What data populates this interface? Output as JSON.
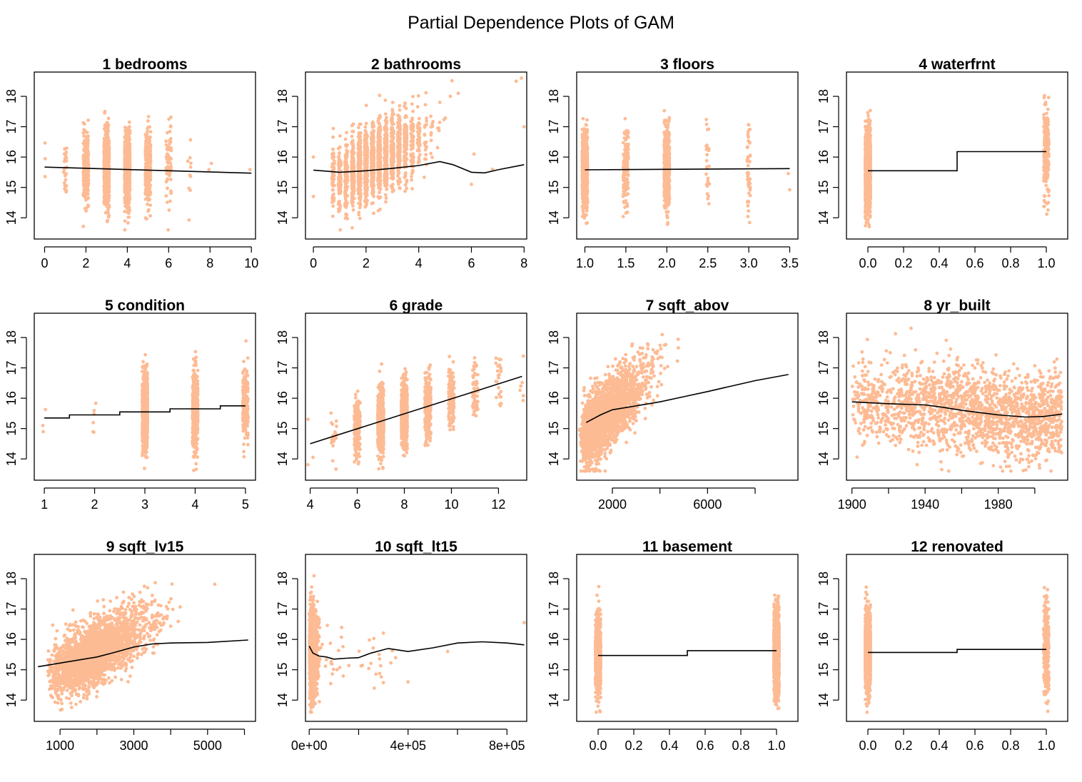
{
  "title": "Partial Dependence Plots of GAM",
  "colors": {
    "points": "#FDBB94",
    "line": "#000000",
    "axis": "#000000",
    "background": "#FFFFFF"
  },
  "chart_data": [
    {
      "type": "scatter",
      "title": "1  bedrooms",
      "xlim": [
        -0.5,
        10.2
      ],
      "xticks": [
        0,
        2,
        4,
        6,
        8,
        10
      ],
      "ylim": [
        13.3,
        18.8
      ],
      "yticks": [
        14,
        15,
        16,
        17,
        18
      ],
      "clusters": [
        {
          "x": 0,
          "n": 3
        },
        {
          "x": 1,
          "n": 25,
          "sd": 0.5
        },
        {
          "x": 2,
          "n": 250,
          "sd": 0.55
        },
        {
          "x": 3,
          "n": 700,
          "sd": 0.6
        },
        {
          "x": 4,
          "n": 700,
          "sd": 0.6
        },
        {
          "x": 5,
          "n": 300,
          "sd": 0.65
        },
        {
          "x": 6,
          "n": 70,
          "sd": 0.7
        },
        {
          "x": 7,
          "n": 10,
          "sd": 0.8
        },
        {
          "x": 8,
          "n": 2
        },
        {
          "x": 10,
          "n": 1
        }
      ],
      "line": {
        "kind": "smooth",
        "points": [
          [
            0,
            15.67
          ],
          [
            5,
            15.57
          ],
          [
            10,
            15.47
          ]
        ]
      }
    },
    {
      "type": "scatter",
      "title": "2  bathrooms",
      "xlim": [
        -0.3,
        8.1
      ],
      "xticks": [
        0,
        2,
        4,
        6,
        8
      ],
      "ylim": [
        13.3,
        18.8
      ],
      "yticks": [
        14,
        15,
        16,
        17,
        18
      ],
      "line": {
        "kind": "smooth",
        "points": [
          [
            0,
            15.57
          ],
          [
            1,
            15.5
          ],
          [
            2,
            15.55
          ],
          [
            3,
            15.63
          ],
          [
            4,
            15.72
          ],
          [
            4.8,
            15.85
          ],
          [
            5.3,
            15.75
          ],
          [
            6,
            15.5
          ],
          [
            6.5,
            15.48
          ],
          [
            7,
            15.58
          ],
          [
            8,
            15.75
          ]
        ]
      }
    },
    {
      "type": "scatter",
      "title": "3  floors",
      "xlim": [
        0.9,
        3.6
      ],
      "xticks": [
        1.0,
        1.5,
        2.0,
        2.5,
        3.0,
        3.5
      ],
      "xtick_labels": [
        "1.0",
        "1.5",
        "2.0",
        "2.5",
        "3.0",
        "3.5"
      ],
      "ylim": [
        13.3,
        18.8
      ],
      "yticks": [
        14,
        15,
        16,
        17,
        18
      ],
      "clusters": [
        {
          "x": 1.0,
          "n": 900,
          "sd": 0.6
        },
        {
          "x": 1.5,
          "n": 150,
          "sd": 0.6
        },
        {
          "x": 2.0,
          "n": 650,
          "sd": 0.65
        },
        {
          "x": 2.5,
          "n": 25,
          "sd": 0.8
        },
        {
          "x": 3.0,
          "n": 50,
          "sd": 0.7
        },
        {
          "x": 3.5,
          "n": 2
        }
      ],
      "line": {
        "kind": "smooth",
        "points": [
          [
            1.0,
            15.58
          ],
          [
            3.5,
            15.62
          ]
        ]
      }
    },
    {
      "type": "scatter",
      "title": "4  waterfrnt",
      "xlim": [
        -0.12,
        1.12
      ],
      "xticks": [
        0.0,
        0.2,
        0.4,
        0.6,
        0.8,
        1.0
      ],
      "xtick_labels": [
        "0.0",
        "0.2",
        "0.4",
        "0.6",
        "0.8",
        "1.0"
      ],
      "ylim": [
        13.3,
        18.8
      ],
      "yticks": [
        14,
        15,
        16,
        17,
        18
      ],
      "clusters": [
        {
          "x": 0,
          "n": 1600,
          "sd": 0.6
        },
        {
          "x": 1,
          "n": 200,
          "sd": 0.8
        }
      ],
      "line": {
        "kind": "step",
        "points": [
          [
            0,
            15.55
          ],
          [
            0.5,
            15.55
          ],
          [
            0.5,
            16.18
          ],
          [
            1,
            16.18
          ]
        ]
      }
    },
    {
      "type": "scatter",
      "title": "5  condition",
      "xlim": [
        0.8,
        5.2
      ],
      "xticks": [
        1,
        2,
        3,
        4,
        5
      ],
      "ylim": [
        13.3,
        18.8
      ],
      "yticks": [
        14,
        15,
        16,
        17,
        18
      ],
      "clusters": [
        {
          "x": 1,
          "n": 3
        },
        {
          "x": 2,
          "n": 6
        },
        {
          "x": 3,
          "n": 900,
          "sd": 0.62
        },
        {
          "x": 4,
          "n": 600,
          "sd": 0.6
        },
        {
          "x": 5,
          "n": 200,
          "sd": 0.6
        }
      ],
      "line": {
        "kind": "step",
        "points": [
          [
            1,
            15.35
          ],
          [
            1.5,
            15.35
          ],
          [
            1.5,
            15.45
          ],
          [
            2.5,
            15.45
          ],
          [
            2.5,
            15.55
          ],
          [
            3.5,
            15.55
          ],
          [
            3.5,
            15.65
          ],
          [
            4.5,
            15.65
          ],
          [
            4.5,
            15.75
          ],
          [
            5,
            15.75
          ]
        ]
      }
    },
    {
      "type": "scatter",
      "title": "6  grade",
      "xlim": [
        3.8,
        13.2
      ],
      "xticks": [
        4,
        6,
        8,
        10,
        12
      ],
      "ylim": [
        13.3,
        18.8
      ],
      "yticks": [
        14,
        15,
        16,
        17,
        18
      ],
      "line": {
        "kind": "smooth",
        "points": [
          [
            4,
            14.5
          ],
          [
            13,
            16.72
          ]
        ]
      }
    },
    {
      "type": "scatter",
      "title": "7  sqft_abov",
      "xlim": [
        500,
        9800
      ],
      "xticks": [
        2000,
        6000
      ],
      "minor_xticks": [
        4000,
        8000
      ],
      "ylim": [
        13.3,
        18.8
      ],
      "yticks": [
        14,
        15,
        16,
        17,
        18
      ],
      "line": {
        "kind": "smooth",
        "points": [
          [
            900,
            15.2
          ],
          [
            1500,
            15.45
          ],
          [
            2000,
            15.62
          ],
          [
            3000,
            15.75
          ],
          [
            4000,
            15.88
          ],
          [
            5000,
            16.05
          ],
          [
            6000,
            16.22
          ],
          [
            7000,
            16.4
          ],
          [
            8000,
            16.58
          ],
          [
            9400,
            16.78
          ]
        ]
      }
    },
    {
      "type": "scatter",
      "title": "8  yr_built",
      "xlim": [
        1897,
        2018
      ],
      "xticks": [
        1900,
        1940,
        1980
      ],
      "minor_xticks": [
        1920,
        1960,
        2000
      ],
      "ylim": [
        13.3,
        18.8
      ],
      "yticks": [
        14,
        15,
        16,
        17,
        18
      ],
      "line": {
        "kind": "smooth",
        "points": [
          [
            1900,
            15.88
          ],
          [
            1920,
            15.82
          ],
          [
            1940,
            15.78
          ],
          [
            1950,
            15.7
          ],
          [
            1960,
            15.6
          ],
          [
            1980,
            15.45
          ],
          [
            1995,
            15.38
          ],
          [
            2005,
            15.4
          ],
          [
            2015,
            15.48
          ]
        ]
      }
    },
    {
      "type": "scatter",
      "title": "9  sqft_lv15",
      "xlim": [
        300,
        6300
      ],
      "xticks": [
        1000,
        3000,
        5000
      ],
      "minor_xticks": [
        2000,
        4000,
        6000
      ],
      "ylim": [
        13.3,
        18.8
      ],
      "yticks": [
        14,
        15,
        16,
        17,
        18
      ],
      "line": {
        "kind": "smooth",
        "points": [
          [
            400,
            15.1
          ],
          [
            1000,
            15.22
          ],
          [
            1500,
            15.32
          ],
          [
            2000,
            15.42
          ],
          [
            2500,
            15.58
          ],
          [
            3000,
            15.75
          ],
          [
            3500,
            15.85
          ],
          [
            4000,
            15.88
          ],
          [
            5000,
            15.9
          ],
          [
            6100,
            15.98
          ]
        ]
      }
    },
    {
      "type": "scatter",
      "title": "10  sqft_lt15",
      "xlim": [
        -15000,
        880000
      ],
      "xticks": [
        0,
        400000,
        800000
      ],
      "xtick_labels": [
        "0e+00",
        "4e+05",
        "8e+05"
      ],
      "minor_xticks": [
        200000,
        600000
      ],
      "ylim": [
        13.3,
        18.8
      ],
      "yticks": [
        14,
        15,
        16,
        17,
        18
      ],
      "line": {
        "kind": "smooth",
        "points": [
          [
            0,
            15.78
          ],
          [
            15000,
            15.55
          ],
          [
            40000,
            15.45
          ],
          [
            70000,
            15.42
          ],
          [
            100000,
            15.35
          ],
          [
            150000,
            15.38
          ],
          [
            200000,
            15.4
          ],
          [
            250000,
            15.55
          ],
          [
            320000,
            15.7
          ],
          [
            400000,
            15.6
          ],
          [
            500000,
            15.72
          ],
          [
            600000,
            15.88
          ],
          [
            700000,
            15.92
          ],
          [
            800000,
            15.88
          ],
          [
            870000,
            15.82
          ]
        ]
      }
    },
    {
      "type": "scatter",
      "title": "11  basement",
      "xlim": [
        -0.12,
        1.12
      ],
      "xticks": [
        0.0,
        0.2,
        0.4,
        0.6,
        0.8,
        1.0
      ],
      "xtick_labels": [
        "0.0",
        "0.2",
        "0.4",
        "0.6",
        "0.8",
        "1.0"
      ],
      "ylim": [
        13.3,
        18.8
      ],
      "yticks": [
        14,
        15,
        16,
        17,
        18
      ],
      "clusters": [
        {
          "x": 0,
          "n": 900,
          "sd": 0.6
        },
        {
          "x": 1,
          "n": 1300,
          "sd": 0.65
        }
      ],
      "line": {
        "kind": "step",
        "points": [
          [
            0,
            15.47
          ],
          [
            0.5,
            15.47
          ],
          [
            0.5,
            15.63
          ],
          [
            1,
            15.63
          ]
        ]
      }
    },
    {
      "type": "scatter",
      "title": "12  renovated",
      "xlim": [
        -0.12,
        1.12
      ],
      "xticks": [
        0.0,
        0.2,
        0.4,
        0.6,
        0.8,
        1.0
      ],
      "xtick_labels": [
        "0.0",
        "0.2",
        "0.4",
        "0.6",
        "0.8",
        "1.0"
      ],
      "ylim": [
        13.3,
        18.8
      ],
      "yticks": [
        14,
        15,
        16,
        17,
        18
      ],
      "clusters": [
        {
          "x": 0,
          "n": 1600,
          "sd": 0.6
        },
        {
          "x": 1,
          "n": 250,
          "sd": 0.75
        }
      ],
      "line": {
        "kind": "step",
        "points": [
          [
            0,
            15.57
          ],
          [
            0.5,
            15.57
          ],
          [
            0.5,
            15.67
          ],
          [
            1,
            15.67
          ]
        ]
      }
    }
  ]
}
